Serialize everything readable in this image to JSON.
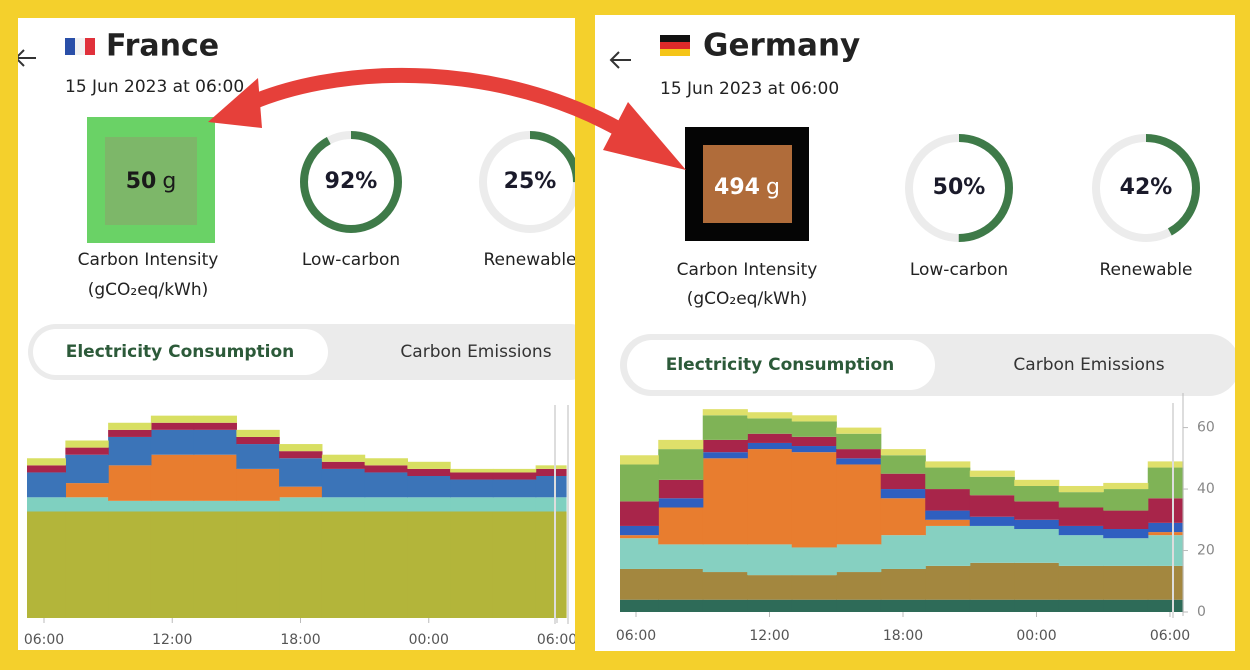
{
  "panels": [
    {
      "country": "France",
      "datetime": "15 Jun 2023 at 06:00",
      "carbon_intensity": {
        "value": 50,
        "unit": "g",
        "label": "Carbon Intensity",
        "unit_label": "(gCO₂eq/kWh)",
        "box_color": "#6ad266",
        "fill_color": "#7db769",
        "text_color": "#1a1a1a"
      },
      "low_carbon": {
        "value": 92,
        "value_label": "92%",
        "label": "Low-carbon"
      },
      "renewable": {
        "value": 25,
        "value_label": "25%",
        "label": "Renewable"
      },
      "tabs": [
        "Electricity Consumption",
        "Carbon Emissions"
      ],
      "chart_data": {
        "type": "area",
        "categories": [
          "06:00",
          null,
          null,
          "12:00",
          null,
          null,
          "18:00",
          null,
          null,
          "00:00",
          null,
          null,
          "06:00"
        ],
        "ylim": [
          0,
          60
        ],
        "series": [
          {
            "color": "#b3b53a",
            "values": [
              30,
              30,
              30,
              30,
              30,
              30,
              30,
              30,
              30,
              30,
              30,
              30,
              30
            ]
          },
          {
            "color": "#7fd0c0",
            "values": [
              4,
              4,
              3,
              3,
              3,
              3,
              4,
              4,
              4,
              4,
              4,
              4,
              4
            ]
          },
          {
            "color": "#e87d2f",
            "values": [
              0,
              4,
              10,
              13,
              13,
              9,
              3,
              0,
              0,
              0,
              0,
              0,
              0
            ]
          },
          {
            "color": "#3b74b8",
            "values": [
              7,
              8,
              8,
              7,
              7,
              7,
              8,
              8,
              7,
              6,
              5,
              5,
              6
            ]
          },
          {
            "color": "#a8254a",
            "values": [
              2,
              2,
              2,
              2,
              2,
              2,
              2,
              2,
              2,
              2,
              2,
              2,
              2
            ]
          },
          {
            "color": "#d8df62",
            "values": [
              2,
              2,
              2,
              2,
              2,
              2,
              2,
              2,
              2,
              2,
              1,
              1,
              1
            ]
          }
        ]
      }
    },
    {
      "country": "Germany",
      "datetime": "15 Jun 2023 at 06:00",
      "carbon_intensity": {
        "value": 494,
        "unit": "g",
        "label": "Carbon Intensity",
        "unit_label": "(gCO₂eq/kWh)",
        "box_color": "#050505",
        "fill_color": "#b06c3a",
        "text_color": "#ffffff"
      },
      "low_carbon": {
        "value": 50,
        "value_label": "50%",
        "label": "Low-carbon"
      },
      "renewable": {
        "value": 42,
        "value_label": "42%",
        "label": "Renewable"
      },
      "tabs": [
        "Electricity Consumption",
        "Carbon Emissions"
      ],
      "chart_data": {
        "type": "area",
        "categories": [
          "06:00",
          null,
          null,
          "12:00",
          null,
          null,
          "18:00",
          null,
          null,
          "00:00",
          null,
          null,
          "06:00"
        ],
        "ylim": [
          0,
          68
        ],
        "yticks": [
          0,
          20,
          40,
          60
        ],
        "series": [
          {
            "color": "#2e6b58",
            "values": [
              4,
              4,
              4,
              4,
              4,
              4,
              4,
              4,
              4,
              4,
              4,
              4,
              4
            ]
          },
          {
            "color": "#a3873f",
            "values": [
              10,
              10,
              9,
              8,
              8,
              9,
              10,
              11,
              12,
              12,
              11,
              11,
              11
            ]
          },
          {
            "color": "#86d0c1",
            "values": [
              10,
              8,
              9,
              10,
              9,
              9,
              11,
              13,
              12,
              11,
              10,
              9,
              10
            ]
          },
          {
            "color": "#e87d2f",
            "values": [
              1,
              12,
              28,
              31,
              31,
              26,
              12,
              2,
              0,
              0,
              0,
              0,
              1
            ]
          },
          {
            "color": "#2f5fc0",
            "values": [
              3,
              3,
              2,
              2,
              2,
              2,
              3,
              3,
              3,
              3,
              3,
              3,
              3
            ]
          },
          {
            "color": "#a8254a",
            "values": [
              8,
              6,
              4,
              3,
              3,
              3,
              5,
              7,
              7,
              6,
              6,
              6,
              8
            ]
          },
          {
            "color": "#7fb356",
            "values": [
              12,
              10,
              8,
              5,
              5,
              5,
              6,
              7,
              6,
              5,
              5,
              7,
              10
            ]
          },
          {
            "color": "#dfe06a",
            "values": [
              3,
              3,
              2,
              2,
              2,
              2,
              2,
              2,
              2,
              2,
              2,
              2,
              2
            ]
          }
        ]
      }
    }
  ]
}
